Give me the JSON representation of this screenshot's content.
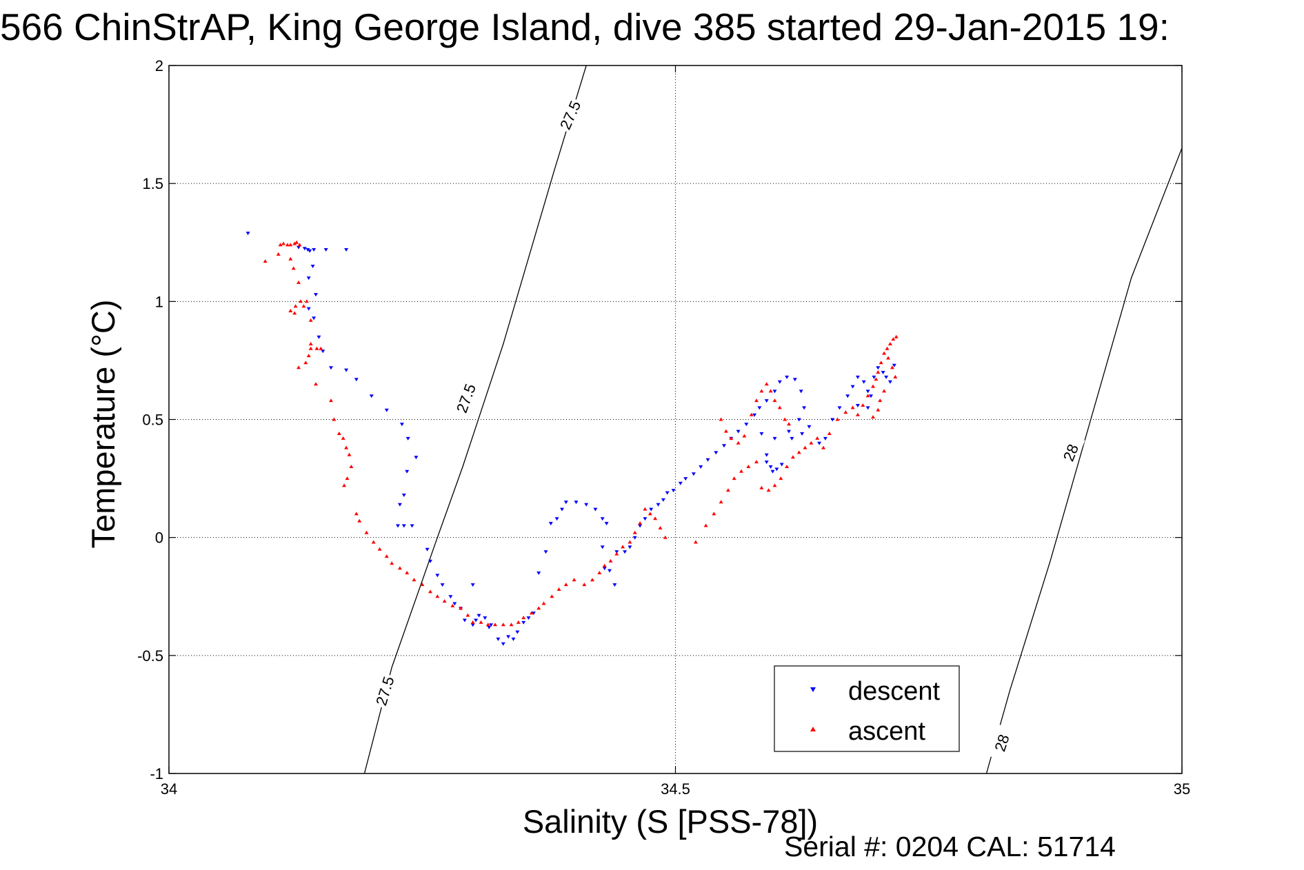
{
  "title": "566 ChinStrAP, King George Island, dive 385 started 29-Jan-2015 19:",
  "footer": "Serial #: 0204  CAL: 51714",
  "chart_data": {
    "type": "scatter",
    "title": "566 ChinStrAP, King George Island, dive 385 started 29-Jan-2015 19:",
    "xlabel": "Salinity (S [PSS-78])",
    "ylabel": "Temperature (°C)",
    "xlim": [
      34,
      35
    ],
    "ylim": [
      -1,
      2
    ],
    "xticks": [
      34,
      34.5,
      35
    ],
    "xtick_labels": [
      "34",
      "34.5",
      "35"
    ],
    "yticks": [
      -1,
      -0.5,
      0,
      0.5,
      1,
      1.5,
      2
    ],
    "ytick_labels": [
      "-1",
      "-0.5",
      "0",
      "0.5",
      "1",
      "1.5",
      "2"
    ],
    "grid": true,
    "legend_position": "bottom-right",
    "colors": {
      "descent": "#0000ff",
      "ascent": "#ff0000",
      "contour": "#000000"
    },
    "contours": [
      {
        "label": "27.5",
        "points": [
          [
            34.193,
            -1.0
          ],
          [
            34.22,
            -0.55
          ],
          [
            34.265,
            0.0
          ],
          [
            34.29,
            0.3
          ],
          [
            34.33,
            0.82
          ],
          [
            34.38,
            1.55
          ],
          [
            34.412,
            2.0
          ]
        ]
      },
      {
        "label": "28",
        "points": [
          [
            34.807,
            -1.0
          ],
          [
            34.83,
            -0.65
          ],
          [
            34.87,
            -0.1
          ],
          [
            34.9,
            0.35
          ],
          [
            34.95,
            1.1
          ],
          [
            35.0,
            1.65
          ]
        ]
      }
    ],
    "contour_labels": [
      {
        "text": "27.5",
        "x": 34.396,
        "y": 1.79,
        "angle": -66
      },
      {
        "text": "27.5",
        "x": 34.293,
        "y": 0.59,
        "angle": -70
      },
      {
        "text": "27.5",
        "x": 34.213,
        "y": -0.65,
        "angle": -73
      },
      {
        "text": "28",
        "x": 34.89,
        "y": 0.36,
        "angle": -68
      },
      {
        "text": "28",
        "x": 34.822,
        "y": -0.87,
        "angle": -72
      }
    ],
    "series": [
      {
        "name": "descent",
        "marker": "triangle-down",
        "points": [
          [
            34.078,
            1.29
          ],
          [
            34.128,
            1.23
          ],
          [
            34.134,
            1.225
          ],
          [
            34.137,
            1.22
          ],
          [
            34.139,
            1.215
          ],
          [
            34.143,
            1.22
          ],
          [
            34.155,
            1.22
          ],
          [
            34.175,
            1.22
          ],
          [
            34.142,
            1.15
          ],
          [
            34.138,
            1.1
          ],
          [
            34.145,
            1.03
          ],
          [
            34.138,
            0.97
          ],
          [
            34.143,
            0.93
          ],
          [
            34.148,
            0.85
          ],
          [
            34.152,
            0.79
          ],
          [
            34.16,
            0.72
          ],
          [
            34.175,
            0.71
          ],
          [
            34.185,
            0.67
          ],
          [
            34.2,
            0.6
          ],
          [
            34.215,
            0.54
          ],
          [
            34.23,
            0.48
          ],
          [
            34.236,
            0.42
          ],
          [
            34.244,
            0.34
          ],
          [
            34.235,
            0.28
          ],
          [
            34.232,
            0.18
          ],
          [
            34.228,
            0.14
          ],
          [
            34.226,
            0.05
          ],
          [
            34.232,
            0.05
          ],
          [
            34.24,
            0.05
          ],
          [
            34.255,
            -0.05
          ],
          [
            34.258,
            -0.1
          ],
          [
            34.265,
            -0.16
          ],
          [
            34.27,
            -0.2
          ],
          [
            34.278,
            -0.25
          ],
          [
            34.282,
            -0.28
          ],
          [
            34.288,
            -0.3
          ],
          [
            34.292,
            -0.35
          ],
          [
            34.3,
            -0.37
          ],
          [
            34.303,
            -0.35
          ],
          [
            34.306,
            -0.33
          ],
          [
            34.3,
            -0.2
          ],
          [
            34.312,
            -0.34
          ],
          [
            34.316,
            -0.38
          ],
          [
            34.318,
            -0.37
          ],
          [
            34.325,
            -0.43
          ],
          [
            34.33,
            -0.45
          ],
          [
            34.335,
            -0.42
          ],
          [
            34.34,
            -0.43
          ],
          [
            34.344,
            -0.4
          ],
          [
            34.35,
            -0.36
          ],
          [
            34.355,
            -0.34
          ],
          [
            34.36,
            -0.32
          ],
          [
            34.365,
            -0.15
          ],
          [
            34.372,
            -0.06
          ],
          [
            34.377,
            0.06
          ],
          [
            34.383,
            0.08
          ],
          [
            34.388,
            0.12
          ],
          [
            34.392,
            0.15
          ],
          [
            34.402,
            0.15
          ],
          [
            34.412,
            0.14
          ],
          [
            34.421,
            0.12
          ],
          [
            34.428,
            0.08
          ],
          [
            34.432,
            0.06
          ],
          [
            34.428,
            -0.04
          ],
          [
            34.43,
            -0.13
          ],
          [
            34.435,
            -0.14
          ],
          [
            34.44,
            -0.2
          ],
          [
            34.442,
            -0.06
          ],
          [
            34.45,
            -0.06
          ],
          [
            34.455,
            -0.04
          ],
          [
            34.46,
            0.0
          ],
          [
            34.465,
            0.05
          ],
          [
            34.47,
            0.08
          ],
          [
            34.476,
            0.12
          ],
          [
            34.483,
            0.14
          ],
          [
            34.488,
            0.16
          ],
          [
            34.492,
            0.19
          ],
          [
            34.498,
            0.2
          ],
          [
            34.505,
            0.23
          ],
          [
            34.51,
            0.25
          ],
          [
            34.518,
            0.27
          ],
          [
            34.525,
            0.3
          ],
          [
            34.532,
            0.33
          ],
          [
            34.54,
            0.36
          ],
          [
            34.548,
            0.39
          ],
          [
            34.555,
            0.42
          ],
          [
            34.562,
            0.45
          ],
          [
            34.57,
            0.48
          ],
          [
            34.578,
            0.52
          ],
          [
            34.583,
            0.55
          ],
          [
            34.59,
            0.58
          ],
          [
            34.598,
            0.62
          ],
          [
            34.603,
            0.66
          ],
          [
            34.61,
            0.68
          ],
          [
            34.618,
            0.67
          ],
          [
            34.624,
            0.62
          ],
          [
            34.627,
            0.55
          ],
          [
            34.622,
            0.5
          ],
          [
            34.612,
            0.45
          ],
          [
            34.598,
            0.42
          ],
          [
            34.585,
            0.44
          ],
          [
            34.59,
            0.32
          ],
          [
            34.594,
            0.3
          ],
          [
            34.596,
            0.28
          ],
          [
            34.6,
            0.29
          ],
          [
            34.605,
            0.31
          ],
          [
            34.59,
            0.35
          ],
          [
            34.615,
            0.42
          ],
          [
            34.625,
            0.44
          ],
          [
            34.632,
            0.47
          ],
          [
            34.642,
            0.4
          ],
          [
            34.648,
            0.42
          ],
          [
            34.655,
            0.5
          ],
          [
            34.662,
            0.55
          ],
          [
            34.67,
            0.6
          ],
          [
            34.675,
            0.64
          ],
          [
            34.68,
            0.68
          ],
          [
            34.686,
            0.66
          ],
          [
            34.69,
            0.62
          ],
          [
            34.693,
            0.6
          ],
          [
            34.696,
            0.68
          ],
          [
            34.7,
            0.72
          ],
          [
            34.705,
            0.7
          ],
          [
            34.708,
            0.68
          ],
          [
            34.712,
            0.66
          ],
          [
            34.716,
            0.73
          ],
          [
            34.69,
            0.55
          ],
          [
            34.68,
            0.56
          ]
        ]
      },
      {
        "name": "ascent",
        "marker": "triangle-up",
        "points": [
          [
            34.095,
            1.17
          ],
          [
            34.108,
            1.2
          ],
          [
            34.11,
            1.24
          ],
          [
            34.113,
            1.245
          ],
          [
            34.117,
            1.24
          ],
          [
            34.12,
            1.24
          ],
          [
            34.124,
            1.245
          ],
          [
            34.126,
            1.25
          ],
          [
            34.129,
            1.24
          ],
          [
            34.12,
            1.18
          ],
          [
            34.123,
            1.14
          ],
          [
            34.128,
            1.08
          ],
          [
            34.13,
            1.0
          ],
          [
            34.125,
            0.98
          ],
          [
            34.12,
            0.96
          ],
          [
            34.124,
            0.95
          ],
          [
            34.133,
            0.98
          ],
          [
            34.136,
            1.0
          ],
          [
            34.14,
            0.92
          ],
          [
            34.14,
            0.82
          ],
          [
            34.14,
            0.8
          ],
          [
            34.146,
            0.8
          ],
          [
            34.15,
            0.8
          ],
          [
            34.138,
            0.77
          ],
          [
            34.135,
            0.74
          ],
          [
            34.128,
            0.72
          ],
          [
            34.145,
            0.65
          ],
          [
            34.16,
            0.58
          ],
          [
            34.163,
            0.5
          ],
          [
            34.168,
            0.44
          ],
          [
            34.172,
            0.42
          ],
          [
            34.175,
            0.38
          ],
          [
            34.178,
            0.35
          ],
          [
            34.18,
            0.3
          ],
          [
            34.176,
            0.25
          ],
          [
            34.173,
            0.22
          ],
          [
            34.185,
            0.1
          ],
          [
            34.188,
            0.07
          ],
          [
            34.195,
            0.02
          ],
          [
            34.202,
            -0.02
          ],
          [
            34.208,
            -0.05
          ],
          [
            34.215,
            -0.08
          ],
          [
            34.22,
            -0.11
          ],
          [
            34.228,
            -0.13
          ],
          [
            34.235,
            -0.15
          ],
          [
            34.242,
            -0.18
          ],
          [
            34.25,
            -0.2
          ],
          [
            34.258,
            -0.23
          ],
          [
            34.265,
            -0.25
          ],
          [
            34.272,
            -0.27
          ],
          [
            34.28,
            -0.29
          ],
          [
            34.288,
            -0.3
          ],
          [
            34.295,
            -0.33
          ],
          [
            34.3,
            -0.36
          ],
          [
            34.308,
            -0.36
          ],
          [
            34.315,
            -0.37
          ],
          [
            34.322,
            -0.37
          ],
          [
            34.33,
            -0.37
          ],
          [
            34.338,
            -0.37
          ],
          [
            34.345,
            -0.36
          ],
          [
            34.35,
            -0.34
          ],
          [
            34.358,
            -0.32
          ],
          [
            34.365,
            -0.3
          ],
          [
            34.37,
            -0.28
          ],
          [
            34.378,
            -0.25
          ],
          [
            34.385,
            -0.22
          ],
          [
            34.392,
            -0.2
          ],
          [
            34.4,
            -0.18
          ],
          [
            34.41,
            -0.2
          ],
          [
            34.418,
            -0.18
          ],
          [
            34.425,
            -0.15
          ],
          [
            34.43,
            -0.12
          ],
          [
            34.436,
            -0.1
          ],
          [
            34.442,
            -0.07
          ],
          [
            34.448,
            -0.04
          ],
          [
            34.455,
            -0.02
          ],
          [
            34.46,
            0.02
          ],
          [
            34.465,
            0.06
          ],
          [
            34.47,
            0.12
          ],
          [
            34.475,
            0.1
          ],
          [
            34.48,
            0.08
          ],
          [
            34.485,
            0.04
          ],
          [
            34.49,
            0.0
          ],
          [
            34.52,
            -0.02
          ],
          [
            34.53,
            0.05
          ],
          [
            34.538,
            0.1
          ],
          [
            34.545,
            0.15
          ],
          [
            34.552,
            0.2
          ],
          [
            34.558,
            0.25
          ],
          [
            34.565,
            0.28
          ],
          [
            34.572,
            0.3
          ],
          [
            34.58,
            0.32
          ],
          [
            34.585,
            0.21
          ],
          [
            34.592,
            0.2
          ],
          [
            34.598,
            0.22
          ],
          [
            34.604,
            0.25
          ],
          [
            34.61,
            0.3
          ],
          [
            34.616,
            0.34
          ],
          [
            34.622,
            0.36
          ],
          [
            34.628,
            0.38
          ],
          [
            34.634,
            0.4
          ],
          [
            34.64,
            0.42
          ],
          [
            34.646,
            0.38
          ],
          [
            34.652,
            0.44
          ],
          [
            34.545,
            0.5
          ],
          [
            34.55,
            0.45
          ],
          [
            34.555,
            0.42
          ],
          [
            34.562,
            0.4
          ],
          [
            34.568,
            0.43
          ],
          [
            34.575,
            0.52
          ],
          [
            34.58,
            0.58
          ],
          [
            34.585,
            0.62
          ],
          [
            34.59,
            0.65
          ],
          [
            34.594,
            0.62
          ],
          [
            34.598,
            0.58
          ],
          [
            34.603,
            0.55
          ],
          [
            34.608,
            0.5
          ],
          [
            34.612,
            0.48
          ],
          [
            34.66,
            0.5
          ],
          [
            34.668,
            0.53
          ],
          [
            34.675,
            0.55
          ],
          [
            34.68,
            0.52
          ],
          [
            34.685,
            0.56
          ],
          [
            34.69,
            0.6
          ],
          [
            34.695,
            0.64
          ],
          [
            34.698,
            0.67
          ],
          [
            34.7,
            0.7
          ],
          [
            34.703,
            0.74
          ],
          [
            34.706,
            0.78
          ],
          [
            34.709,
            0.8
          ],
          [
            34.712,
            0.82
          ],
          [
            34.715,
            0.84
          ],
          [
            34.718,
            0.85
          ],
          [
            34.71,
            0.76
          ],
          [
            34.714,
            0.72
          ],
          [
            34.717,
            0.68
          ],
          [
            34.706,
            0.62
          ],
          [
            34.702,
            0.58
          ],
          [
            34.7,
            0.54
          ],
          [
            34.695,
            0.51
          ]
        ]
      }
    ]
  }
}
